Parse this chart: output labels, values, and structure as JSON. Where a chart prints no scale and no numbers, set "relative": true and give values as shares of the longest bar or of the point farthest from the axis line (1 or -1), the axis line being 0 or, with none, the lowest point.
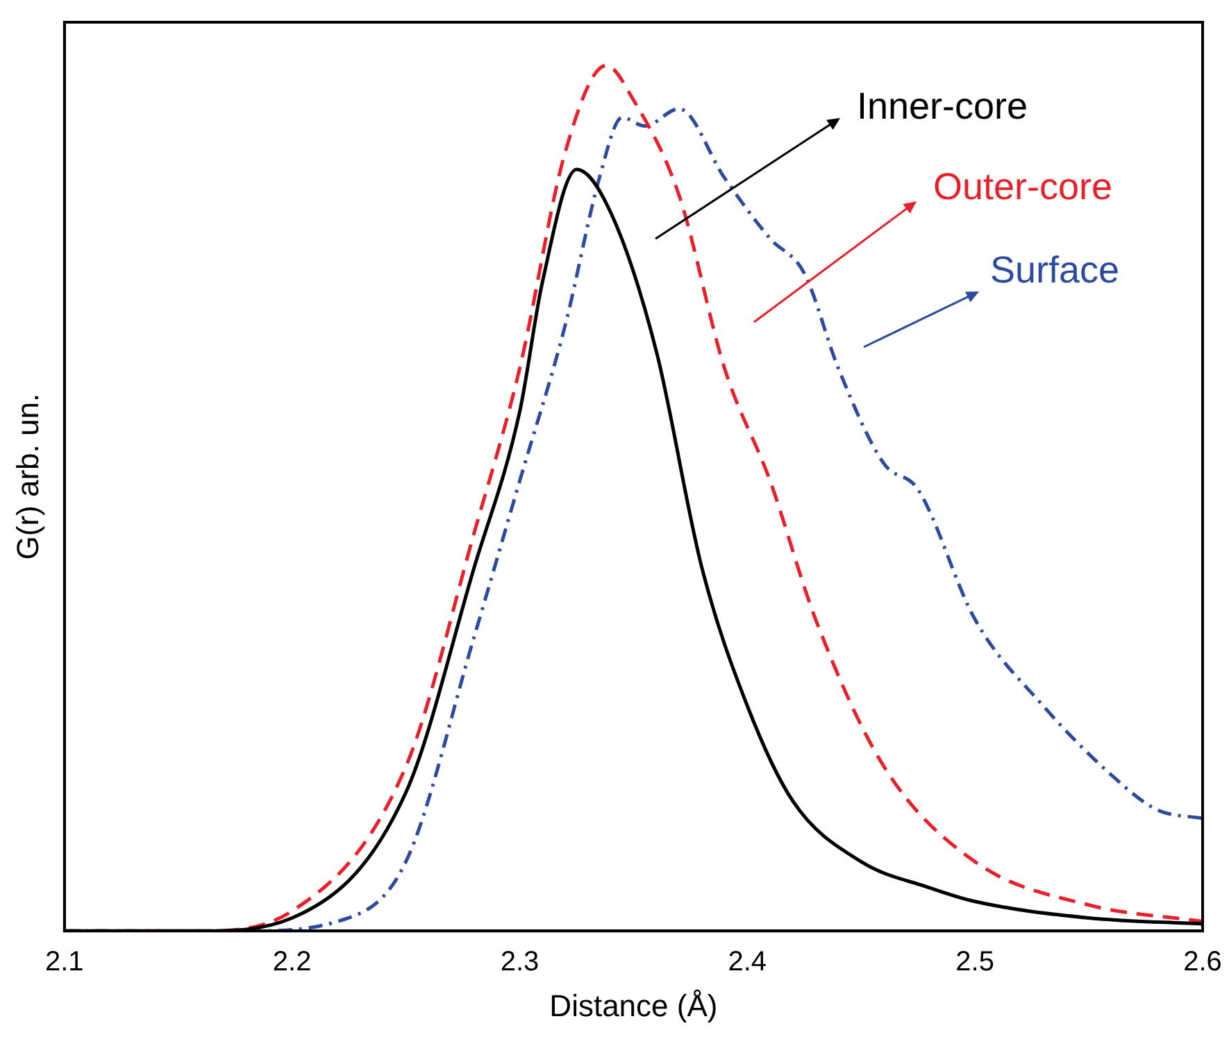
{
  "chart_data": {
    "type": "line",
    "xlabel": "Distance (Å)",
    "ylabel": "G(r) arb. un.",
    "relative": true,
    "xlim": [
      2.1,
      2.6
    ],
    "xticks": [
      2.1,
      2.2,
      2.3,
      2.4,
      2.5,
      2.6
    ],
    "grid": false,
    "legend": "top right",
    "marker": "none",
    "series": [
      {
        "name": "Inner-core",
        "color": "#000000",
        "line_style": "solid",
        "x": [
          2.1,
          2.16,
          2.2,
          2.25,
          2.28,
          2.3,
          2.31,
          2.325,
          2.34,
          2.36,
          2.38,
          2.4,
          2.42,
          2.45,
          2.48,
          2.5,
          2.55,
          2.6
        ],
        "values": [
          0,
          0,
          0.015,
          0.16,
          0.42,
          0.6,
          0.75,
          0.88,
          0.83,
          0.67,
          0.42,
          0.26,
          0.15,
          0.08,
          0.05,
          0.034,
          0.015,
          0.008
        ]
      },
      {
        "name": "Outer-core",
        "color": "#e8202a",
        "line_style": "dashed",
        "x": [
          2.1,
          2.16,
          2.2,
          2.25,
          2.28,
          2.3,
          2.32,
          2.338,
          2.35,
          2.37,
          2.39,
          2.41,
          2.43,
          2.46,
          2.5,
          2.55,
          2.6
        ],
        "values": [
          0,
          0,
          0.023,
          0.19,
          0.46,
          0.65,
          0.9,
          1,
          0.96,
          0.85,
          0.65,
          0.52,
          0.36,
          0.19,
          0.08,
          0.03,
          0.011
        ]
      },
      {
        "name": "Surface",
        "color": "#2e4a9e",
        "line_style": "dashdot",
        "x": [
          2.1,
          2.18,
          2.22,
          2.25,
          2.28,
          2.3,
          2.32,
          2.335,
          2.345,
          2.355,
          2.37,
          2.39,
          2.41,
          2.425,
          2.44,
          2.46,
          2.475,
          2.5,
          2.53,
          2.56,
          2.58,
          2.6
        ],
        "values": [
          0,
          0,
          0.011,
          0.08,
          0.34,
          0.52,
          0.7,
          0.87,
          0.94,
          0.93,
          0.95,
          0.87,
          0.8,
          0.76,
          0.65,
          0.54,
          0.51,
          0.36,
          0.26,
          0.18,
          0.14,
          0.13
        ]
      }
    ]
  }
}
